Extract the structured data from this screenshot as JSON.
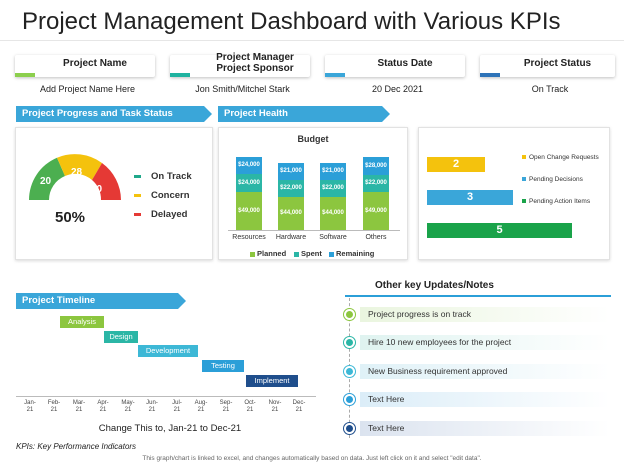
{
  "title": "Project Management Dashboard with Various KPIs",
  "header_cards": [
    {
      "label": "Project Name",
      "value": "Add Project Name Here",
      "color": "#8ccf4d"
    },
    {
      "label": "Project Manager\nProject Sponsor",
      "value": "Jon Smith/Mitchel Stark",
      "color": "#1fb3a0"
    },
    {
      "label": "Status Date",
      "value": "20 Dec 2021",
      "color": "#3aa6d9"
    },
    {
      "label": "Project Status",
      "value": "On Track",
      "color": "#2e73b8"
    }
  ],
  "sections": {
    "progress": "Project Progress and Task Status",
    "health": "Project Health",
    "timeline": "Project Timeline",
    "notes_title": "Other key Updates/Notes"
  },
  "gauge": {
    "percent": "50%",
    "segments": [
      {
        "value": "20",
        "color": "#4caf50"
      },
      {
        "value": "28",
        "color": "#f4c20d"
      },
      {
        "value": "10",
        "color": "#e53935"
      }
    ],
    "legend": [
      {
        "label": "On Track",
        "color": "#1fa88a"
      },
      {
        "label": "Concern",
        "color": "#f4c20d"
      },
      {
        "label": "Delayed",
        "color": "#e53935"
      }
    ]
  },
  "chart_data": {
    "type": "bar",
    "title": "Budget",
    "categories": [
      "Resources",
      "Hardware",
      "Software",
      "Others"
    ],
    "series": [
      {
        "name": "Planned",
        "color": "#8cc63f",
        "values": [
          "$49,000",
          "$44,000",
          "$44,000",
          "$49,000"
        ]
      },
      {
        "name": "Spent",
        "color": "#2bb6a6",
        "values": [
          "$24,000",
          "$22,000",
          "$22,000",
          "$22,000"
        ]
      },
      {
        "name": "Remaining",
        "color": "#2b9fd8",
        "values": [
          "$24,000",
          "$21,000",
          "$21,000",
          "$28,000"
        ]
      }
    ]
  },
  "kpi_bars": [
    {
      "value": "2",
      "color": "#f4c20d",
      "fraction": 0.4
    },
    {
      "value": "3",
      "color": "#3aa6d9",
      "fraction": 0.72
    },
    {
      "value": "5",
      "color": "#1aa34a",
      "fraction": 0.98
    }
  ],
  "kpi_legend": [
    {
      "label": "Open Change Requests",
      "color": "#f4c20d"
    },
    {
      "label": "Pending Decisions",
      "color": "#3aa6d9"
    },
    {
      "label": "Pending Action Items",
      "color": "#1aa34a"
    }
  ],
  "timeline": {
    "tasks": [
      {
        "label": "Analysis",
        "color": "#8cc63f"
      },
      {
        "label": "Design",
        "color": "#2bb6a6"
      },
      {
        "label": "Development",
        "color": "#3db8d6"
      },
      {
        "label": "Testing",
        "color": "#2b9fd8"
      },
      {
        "label": "Implement",
        "color": "#1f4e8c"
      }
    ],
    "months": [
      "Jan-\n21",
      "Feb-\n21",
      "Mar-\n21",
      "Apr-\n21",
      "May-\n21",
      "Jun-\n21",
      "Jul-\n21",
      "Aug-\n21",
      "Sep-\n21",
      "Oct-\n21",
      "Nov-\n21",
      "Dec-\n21"
    ],
    "caption": "Change This to, Jan-21 to Dec-21"
  },
  "notes": [
    {
      "text": "Project progress is on track",
      "color": "#8cc63f"
    },
    {
      "text": "Hire 10 new employees for the project",
      "color": "#2bb6a6"
    },
    {
      "text": "New Business requirement approved",
      "color": "#3db8d6"
    },
    {
      "text": "Text Here",
      "color": "#2b9fd8"
    },
    {
      "text": "Text Here",
      "color": "#1f4e8c"
    }
  ],
  "footer": {
    "kpis": "KPIs: Key Performance Indicators",
    "disclaimer": "This graph/chart is linked to excel, and changes automatically based on data. Just left click on it and select \"edit data\"."
  }
}
